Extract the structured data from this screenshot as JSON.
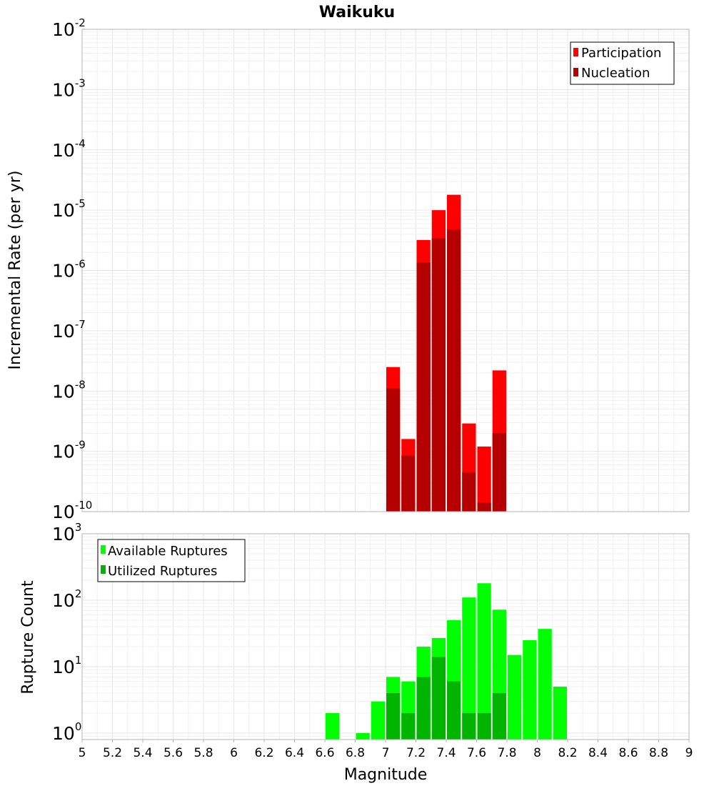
{
  "chart_data": [
    {
      "type": "bar",
      "title": "Waikuku",
      "ylabel": "Incremental Rate (per yr)",
      "y_scale": "log",
      "ylim": [
        1e-10,
        0.01
      ],
      "xlim": [
        5,
        9
      ],
      "bin_width": 0.1,
      "grid": true,
      "legend_position": "top-right",
      "series": [
        {
          "name": "Participation",
          "color": "#ff0000",
          "x": [
            7.05,
            7.15,
            7.25,
            7.35,
            7.45,
            7.55,
            7.65,
            7.75
          ],
          "values": [
            2.5e-08,
            1.6e-09,
            3.2e-06,
            1e-05,
            1.8e-05,
            2.9e-09,
            1.2e-09,
            2.2e-08
          ]
        },
        {
          "name": "Nucleation",
          "color": "#b40000",
          "x": [
            7.05,
            7.15,
            7.25,
            7.35,
            7.45,
            7.55,
            7.65,
            7.75
          ],
          "values": [
            1.1e-08,
            8.5e-10,
            1.35e-06,
            3.4e-06,
            4.8e-06,
            4.5e-10,
            1.4e-10,
            2e-09
          ]
        }
      ],
      "y_ticks": [
        {
          "base": "10",
          "exp": "-2",
          "value": 0.01
        },
        {
          "base": "10",
          "exp": "-3",
          "value": 0.001
        },
        {
          "base": "10",
          "exp": "-4",
          "value": 0.0001
        },
        {
          "base": "10",
          "exp": "-5",
          "value": 1e-05
        },
        {
          "base": "10",
          "exp": "-6",
          "value": 1e-06
        },
        {
          "base": "10",
          "exp": "-7",
          "value": 1e-07
        },
        {
          "base": "10",
          "exp": "-8",
          "value": 1e-08
        },
        {
          "base": "10",
          "exp": "-9",
          "value": 1e-09
        },
        {
          "base": "10",
          "exp": "-10",
          "value": 1e-10
        }
      ]
    },
    {
      "type": "bar",
      "ylabel": "Rupture Count",
      "xlabel": "Magnitude",
      "y_scale": "log",
      "ylim": [
        0.8,
        1000
      ],
      "xlim": [
        5,
        9
      ],
      "bin_width": 0.1,
      "grid": true,
      "legend_position": "top-left",
      "series": [
        {
          "name": "Available Ruptures",
          "color": "#00ff00",
          "x": [
            6.65,
            6.85,
            6.95,
            7.05,
            7.15,
            7.25,
            7.35,
            7.45,
            7.55,
            7.65,
            7.75,
            7.85,
            7.95,
            8.05,
            8.15
          ],
          "values": [
            2,
            1,
            3,
            7,
            6,
            20,
            27,
            50,
            110,
            180,
            72,
            15,
            25,
            37,
            5
          ]
        },
        {
          "name": "Utilized Ruptures",
          "color": "#00b400",
          "x": [
            7.05,
            7.15,
            7.25,
            7.35,
            7.45,
            7.55,
            7.65,
            7.75
          ],
          "values": [
            4,
            2,
            7,
            14,
            6,
            2,
            2,
            4
          ]
        }
      ],
      "y_ticks": [
        {
          "base": "10",
          "exp": "3",
          "value": 1000
        },
        {
          "base": "10",
          "exp": "2",
          "value": 100
        },
        {
          "base": "10",
          "exp": "1",
          "value": 10
        },
        {
          "base": "10",
          "exp": "0",
          "value": 1
        }
      ],
      "x_ticks": [
        "5",
        "5.2",
        "5.4",
        "5.6",
        "5.8",
        "6",
        "6.2",
        "6.4",
        "6.6",
        "6.8",
        "7",
        "7.2",
        "7.4",
        "7.6",
        "7.8",
        "8",
        "8.2",
        "8.4",
        "8.6",
        "8.8",
        "9"
      ]
    }
  ]
}
